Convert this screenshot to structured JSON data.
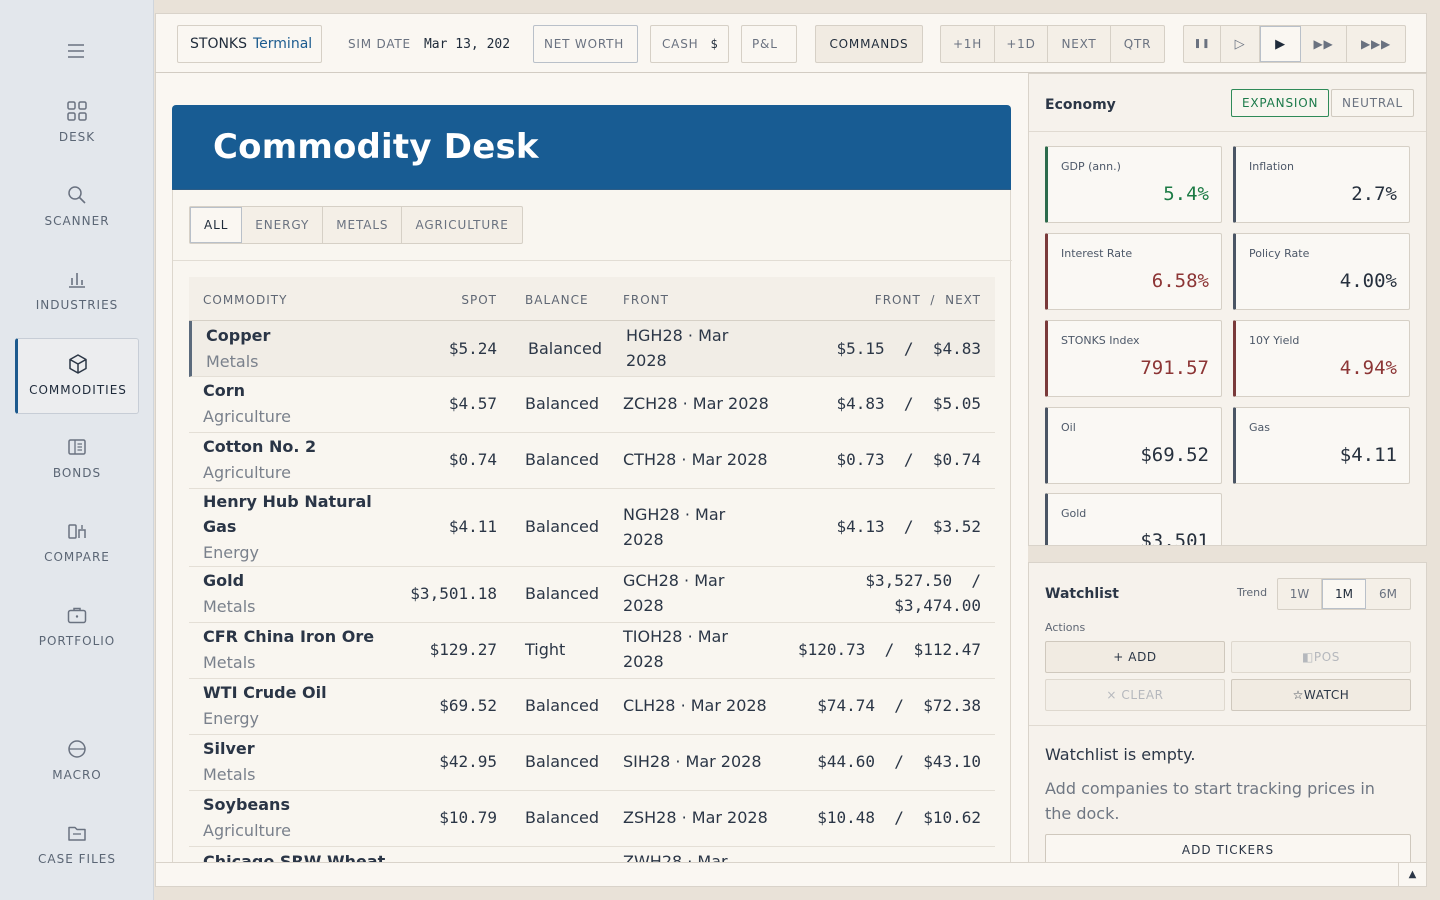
{
  "sidebar": {
    "items": [
      {
        "label": "DESK",
        "icon": "grid-icon"
      },
      {
        "label": "SCANNER",
        "icon": "search-icon"
      },
      {
        "label": "INDUSTRIES",
        "icon": "bar-chart-icon"
      },
      {
        "label": "COMMODITIES",
        "icon": "cube-icon",
        "active": true
      },
      {
        "label": "BONDS",
        "icon": "ledger-icon"
      },
      {
        "label": "COMPARE",
        "icon": "compare-icon"
      },
      {
        "label": "PORTFOLIO",
        "icon": "briefcase-icon"
      },
      {
        "label": "MACRO",
        "icon": "globe-icon"
      },
      {
        "label": "CASE FILES",
        "icon": "folder-icon"
      }
    ]
  },
  "topbar": {
    "brand": "STONKS",
    "brand_sub": "Terminal",
    "sim_date_label": "SIM DATE",
    "sim_date": "Mar 13, 202",
    "net_worth_label": "NET WORTH",
    "cash_label": "CASH",
    "cash_value": "$",
    "pnl_label": "P&L",
    "commands_label": "COMMANDS",
    "step_buttons": [
      "+1H",
      "+1D",
      "NEXT",
      "QTR"
    ],
    "speed_buttons": [
      "❚❚",
      "▷",
      "▶",
      "▶▶",
      "▶▶▶"
    ]
  },
  "main": {
    "title": "Commodity Desk",
    "filters": [
      "ALL",
      "ENERGY",
      "METALS",
      "AGRICULTURE"
    ],
    "columns": {
      "commodity": "COMMODITY",
      "spot": "SPOT",
      "balance": "BALANCE",
      "front": "FRONT",
      "front_next": "FRONT  /  NEXT"
    },
    "rows": [
      {
        "name": "Copper",
        "category": "Metals",
        "spot": "$5.24",
        "balance": "Balanced",
        "front": "HGH28 · Mar 2028",
        "front_next": "$5.15  /  $4.83"
      },
      {
        "name": "Corn",
        "category": "Agriculture",
        "spot": "$4.57",
        "balance": "Balanced",
        "front": "ZCH28 · Mar 2028",
        "front_next": "$4.83  /  $5.05"
      },
      {
        "name": "Cotton No. 2",
        "category": "Agriculture",
        "spot": "$0.74",
        "balance": "Balanced",
        "front": "CTH28 · Mar 2028",
        "front_next": "$0.73  /  $0.74"
      },
      {
        "name": "Henry Hub Natural Gas",
        "category": "Energy",
        "spot": "$4.11",
        "balance": "Balanced",
        "front": "NGH28 · Mar 2028",
        "front_next": "$4.13  /  $3.52"
      },
      {
        "name": "Gold",
        "category": "Metals",
        "spot": "$3,501.18",
        "balance": "Balanced",
        "front": "GCH28 · Mar 2028",
        "front_next": "$3,527.50  /  $3,474.00"
      },
      {
        "name": "CFR China Iron Ore",
        "category": "Metals",
        "spot": "$129.27",
        "balance": "Tight",
        "front": "TIOH28 · Mar 2028",
        "front_next": "$120.73  /  $112.47"
      },
      {
        "name": "WTI Crude Oil",
        "category": "Energy",
        "spot": "$69.52",
        "balance": "Balanced",
        "front": "CLH28 · Mar 2028",
        "front_next": "$74.74  /  $72.38"
      },
      {
        "name": "Silver",
        "category": "Metals",
        "spot": "$42.95",
        "balance": "Balanced",
        "front": "SIH28 · Mar 2028",
        "front_next": "$44.60  /  $43.10"
      },
      {
        "name": "Soybeans",
        "category": "Agriculture",
        "spot": "$10.79",
        "balance": "Balanced",
        "front": "ZSH28 · Mar 2028",
        "front_next": "$10.48  /  $10.62"
      },
      {
        "name": "Chicago SRW Wheat",
        "category": "",
        "spot": "",
        "balance": "",
        "front": "ZWH28 · Mar",
        "front_next": ""
      }
    ]
  },
  "economy": {
    "title": "Economy",
    "regime_active": "EXPANSION",
    "regime_other": "NEUTRAL",
    "cards": [
      {
        "label": "GDP (ann.)",
        "value": "5.4%",
        "tone": "green"
      },
      {
        "label": "Inflation",
        "value": "2.7%",
        "tone": "dark"
      },
      {
        "label": "Interest Rate",
        "value": "6.58%",
        "tone": "red"
      },
      {
        "label": "Policy Rate",
        "value": "4.00%",
        "tone": "dark"
      },
      {
        "label": "STONKS Index",
        "value": "791.57",
        "tone": "red"
      },
      {
        "label": "10Y Yield",
        "value": "4.94%",
        "tone": "red"
      },
      {
        "label": "Oil",
        "value": "$69.52",
        "tone": "dark"
      },
      {
        "label": "Gas",
        "value": "$4.11",
        "tone": "dark"
      },
      {
        "label": "Gold",
        "value": "$3,501",
        "tone": "dark"
      }
    ]
  },
  "watchlist": {
    "title": "Watchlist",
    "trend_label": "Trend",
    "trend_options": [
      "1W",
      "1M",
      "6M"
    ],
    "trend_selected": "1M",
    "actions_label": "Actions",
    "add_label": "+ ADD",
    "pos_label": "◧POS",
    "clear_label": "× CLEAR",
    "watch_label": "☆WATCH",
    "empty_title": "Watchlist is empty.",
    "empty_sub": "Add companies to start tracking prices in the dock.",
    "add_tickers_label": "ADD TICKERS"
  },
  "bottombar": {
    "toggle_icon": "▲"
  },
  "colors": {
    "accent": "#185c93",
    "green": "#1b7a44",
    "red": "#8c3535"
  }
}
